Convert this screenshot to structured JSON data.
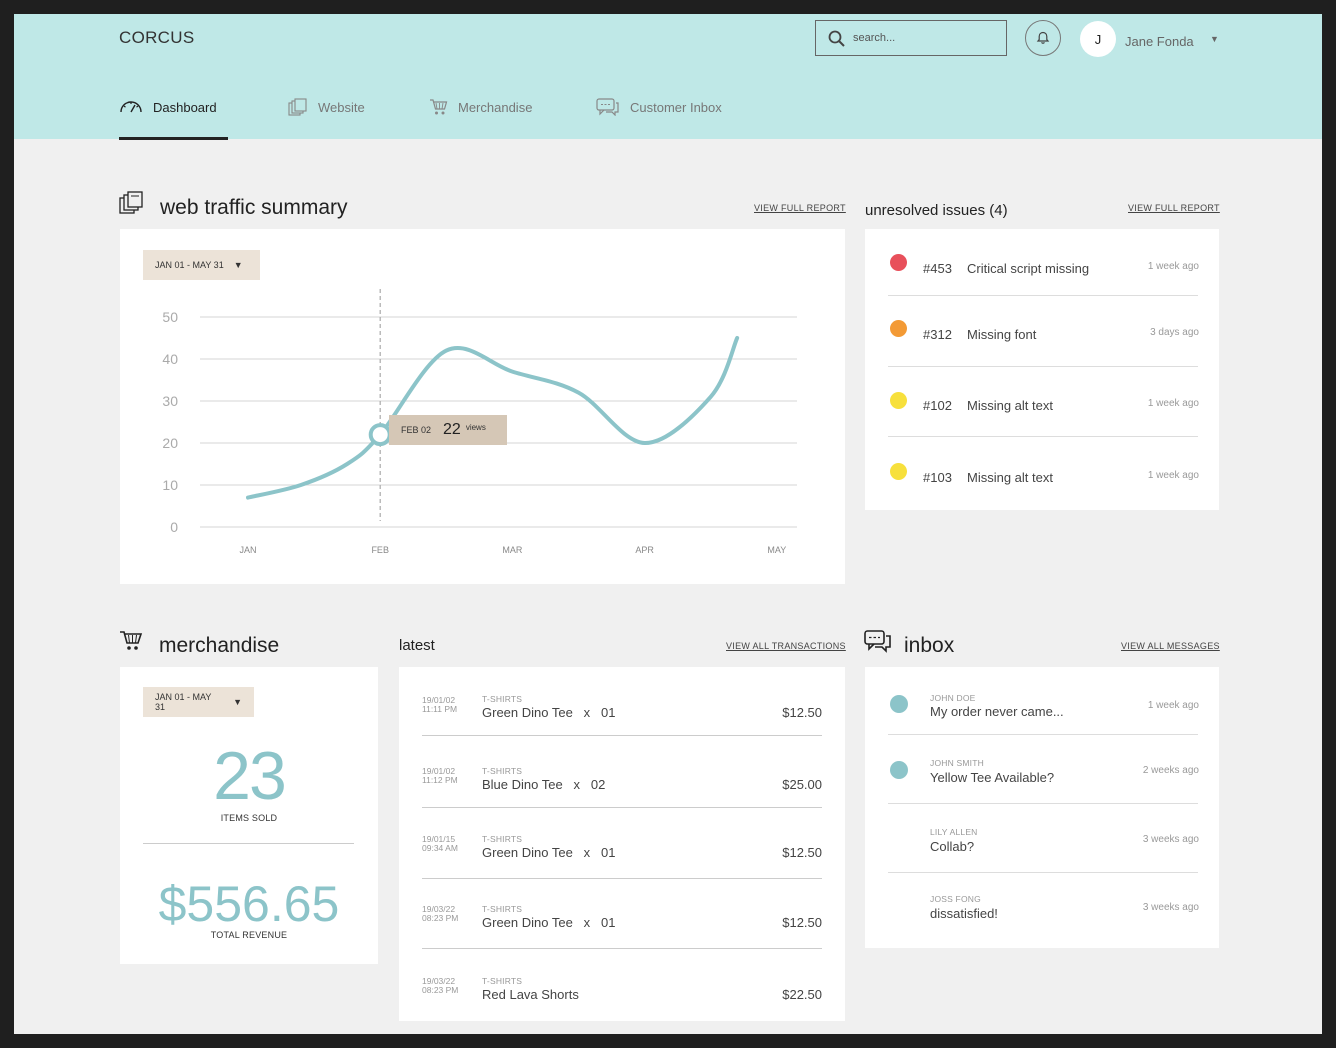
{
  "app": {
    "logo": "CORCUS"
  },
  "header": {
    "search_placeholder": "search...",
    "user_initial": "J",
    "user_name": "Jane Fonda"
  },
  "nav": {
    "tabs": [
      {
        "label": "Dashboard",
        "icon": "speedometer-icon",
        "active": true
      },
      {
        "label": "Website",
        "icon": "pages-icon",
        "active": false
      },
      {
        "label": "Merchandise",
        "icon": "cart-icon",
        "active": false
      },
      {
        "label": "Customer Inbox",
        "icon": "chat-icon",
        "active": false
      }
    ]
  },
  "traffic": {
    "title": "web traffic summary",
    "link": "VIEW FULL REPORT",
    "date_range": "JAN 01 - MAY 31",
    "tooltip": {
      "date": "FEB 02",
      "value": "22",
      "unit": "views"
    }
  },
  "chart_data": {
    "type": "line",
    "title": "",
    "xlabel": "",
    "ylabel": "",
    "categories": [
      "JAN",
      "FEB",
      "MAR",
      "APR",
      "MAY"
    ],
    "ylim": [
      0,
      50
    ],
    "yticks": [
      "0",
      "10",
      "20",
      "30",
      "40",
      "50"
    ],
    "grid": true,
    "series": [
      {
        "color": "#8cc4c9",
        "x": [
          0.0,
          0.4,
          0.75,
          1.0,
          1.5,
          2.0,
          2.5,
          3.0,
          3.5,
          3.7
        ],
        "values": [
          7,
          10,
          15,
          22,
          42,
          37,
          32,
          20,
          31,
          45
        ]
      }
    ],
    "highlight": {
      "x": 1.0,
      "y": 22
    }
  },
  "issues": {
    "title": "unresolved issues (4)",
    "link": "VIEW FULL REPORT",
    "items": [
      {
        "num": "#453",
        "text": "Critical script missing",
        "ago": "1 week ago",
        "color": "#e8505b"
      },
      {
        "num": "#312",
        "text": "Missing font",
        "ago": "3 days ago",
        "color": "#f39a35"
      },
      {
        "num": "#102",
        "text": "Missing alt text",
        "ago": "1 week ago",
        "color": "#f7e03c"
      },
      {
        "num": "#103",
        "text": "Missing alt text",
        "ago": "1 week ago",
        "color": "#f7e03c"
      }
    ]
  },
  "merch": {
    "title": "merchandise",
    "date_range": "JAN 01 - MAY 31",
    "items_sold": "23",
    "items_sold_label": "ITEMS SOLD",
    "revenue": "$556.65",
    "revenue_label": "TOTAL REVENUE"
  },
  "latest": {
    "title": "latest",
    "link": "VIEW ALL TRANSACTIONS",
    "items": [
      {
        "date": "19/01/02",
        "time": "11:11 PM",
        "cat": "T-SHIRTS",
        "name": "Green Dino Tee   x   01",
        "price": "$12.50"
      },
      {
        "date": "19/01/02",
        "time": "11:12 PM",
        "cat": "T-SHIRTS",
        "name": "Blue Dino Tee   x   02",
        "price": "$25.00"
      },
      {
        "date": "19/01/15",
        "time": "09:34 AM",
        "cat": "T-SHIRTS",
        "name": "Green Dino Tee   x   01",
        "price": "$12.50"
      },
      {
        "date": "19/03/22",
        "time": "08:23 PM",
        "cat": "T-SHIRTS",
        "name": "Green Dino Tee   x   01",
        "price": "$12.50"
      },
      {
        "date": "19/03/22",
        "time": "08:23 PM",
        "cat": "T-SHIRTS",
        "name": "Red Lava Shorts",
        "price": "$22.50"
      }
    ]
  },
  "inbox": {
    "title": "inbox",
    "link": "VIEW ALL MESSAGES",
    "items": [
      {
        "from": "JOHN DOE",
        "subject": "My order never came...",
        "ago": "1 week ago",
        "unread": true
      },
      {
        "from": "JOHN SMITH",
        "subject": "Yellow Tee Available?",
        "ago": "2 weeks ago",
        "unread": true
      },
      {
        "from": "LILY ALLEN",
        "subject": "Collab?",
        "ago": "3 weeks ago",
        "unread": false
      },
      {
        "from": "JOSS FONG",
        "subject": "dissatisfied!",
        "ago": "3 weeks ago",
        "unread": false
      }
    ]
  },
  "colors": {
    "header_bg": "#bfe8e7",
    "accent": "#8cc4c9",
    "pill_bg": "#ece3d8"
  }
}
